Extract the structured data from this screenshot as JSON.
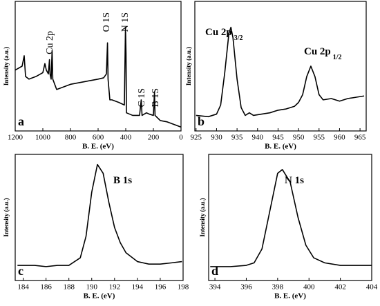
{
  "chart_data": [
    {
      "type": "line",
      "panel_label": "a",
      "xlabel": "B. E. (eV)",
      "ylabel": "Intensity (a.u.)",
      "xlim": [
        1200,
        0
      ],
      "xticks": [
        1200,
        1000,
        800,
        600,
        400,
        200,
        0
      ],
      "ylim": [
        0,
        100
      ],
      "color": "#000000",
      "annotations": [
        {
          "text": "Cu 2p"
        },
        {
          "text": "O 1S"
        },
        {
          "text": "N 1S"
        },
        {
          "text": "C 1S"
        },
        {
          "text": "B 1S"
        }
      ],
      "x": [
        1200,
        1150,
        1135,
        1125,
        1100,
        1050,
        1000,
        985,
        975,
        960,
        952,
        948,
        940,
        933,
        928,
        900,
        850,
        800,
        750,
        700,
        650,
        600,
        560,
        540,
        532,
        528,
        515,
        500,
        450,
        410,
        402,
        398,
        395,
        350,
        300,
        288,
        282,
        250,
        230,
        200,
        192,
        188,
        150,
        100,
        50,
        0
      ],
      "values": [
        47,
        50,
        58,
        42,
        40,
        42,
        45,
        52,
        47,
        44,
        55,
        44,
        40,
        62,
        40,
        32,
        34,
        36,
        37,
        38,
        39,
        40,
        41,
        44,
        68,
        40,
        24,
        24,
        22,
        20,
        80,
        60,
        14,
        12,
        12,
        24,
        12,
        14,
        13,
        12,
        30,
        12,
        8,
        7,
        5,
        3
      ]
    },
    {
      "type": "line",
      "panel_label": "b",
      "xlabel": "B. E. (eV)",
      "ylabel": "Intensity (a.u.)",
      "xlim": [
        924.7,
        966.5
      ],
      "xticks": [
        925,
        930,
        935,
        940,
        945,
        950,
        955,
        960,
        965
      ],
      "ylim": [
        0,
        100
      ],
      "color": "#000000",
      "annotations": [
        {
          "text": "Cu 2p",
          "sub": "3/2"
        },
        {
          "text": "Cu 2p",
          "sub": "1/2"
        }
      ],
      "x": [
        925,
        928,
        930,
        931,
        932,
        933,
        933.5,
        934,
        935,
        936,
        937,
        938,
        939,
        941,
        943,
        945,
        947,
        949,
        950,
        951,
        952,
        953,
        954,
        955,
        956,
        958,
        960,
        962,
        964,
        966
      ],
      "values": [
        12,
        11,
        13,
        20,
        45,
        75,
        80,
        72,
        40,
        18,
        12,
        14,
        12,
        13,
        14,
        16,
        17,
        19,
        22,
        28,
        42,
        50,
        42,
        28,
        24,
        25,
        23,
        25,
        26,
        27
      ]
    },
    {
      "type": "line",
      "panel_label": "c",
      "xlabel": "B. E. (eV)",
      "ylabel": "Intensity (a.u.)",
      "xlim": [
        183.3,
        198
      ],
      "xticks": [
        184,
        186,
        188,
        190,
        192,
        194,
        196,
        198
      ],
      "ylim": [
        0,
        100
      ],
      "color": "#000000",
      "annotations": [
        {
          "text": "B 1s"
        }
      ],
      "x": [
        183.5,
        185,
        186,
        187,
        188,
        189,
        189.5,
        190,
        190.5,
        191,
        191.5,
        192,
        192.5,
        193,
        194,
        195,
        196,
        197,
        197.9
      ],
      "values": [
        12,
        12,
        11,
        12,
        12,
        18,
        35,
        70,
        92,
        85,
        62,
        42,
        30,
        22,
        15,
        13,
        13,
        14,
        15
      ]
    },
    {
      "type": "line",
      "panel_label": "d",
      "xlabel": "B. E. (eV)",
      "ylabel": "Intensity (a.u.)",
      "xlim": [
        393.6,
        404
      ],
      "xticks": [
        394,
        396,
        398,
        400,
        402,
        404
      ],
      "ylim": [
        0,
        100
      ],
      "color": "#000000",
      "annotations": [
        {
          "text": "N 1s"
        }
      ],
      "x": [
        393.7,
        394,
        395,
        396,
        396.5,
        397,
        397.5,
        398,
        398.3,
        398.8,
        399.3,
        399.8,
        400.3,
        401,
        402,
        403,
        404
      ],
      "values": [
        11,
        11,
        11,
        12,
        14,
        25,
        55,
        85,
        88,
        78,
        50,
        28,
        18,
        14,
        12,
        12,
        12
      ]
    }
  ]
}
